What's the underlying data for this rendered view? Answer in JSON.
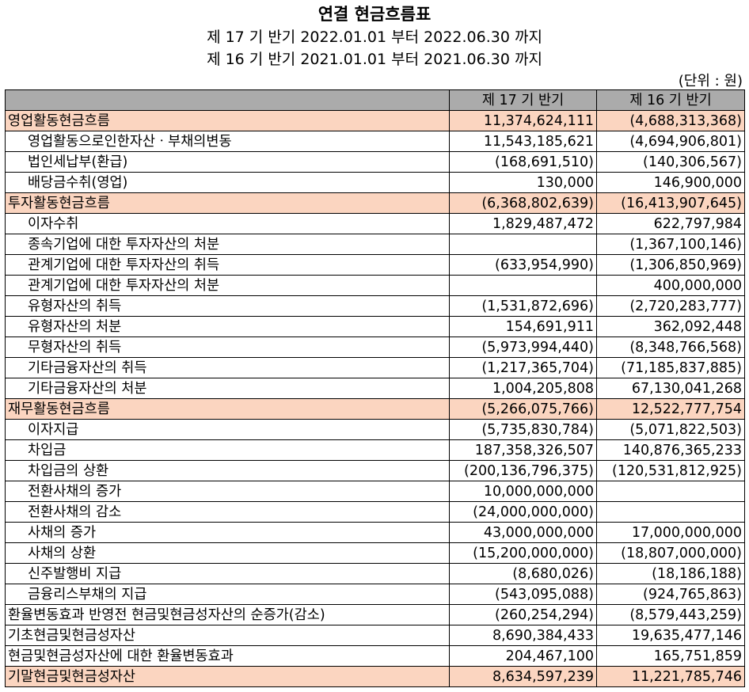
{
  "header": {
    "title": "연결 현금흐름표",
    "period_current": "제 17 기 반기 2022.01.01 부터 2022.06.30 까지",
    "period_prior": "제 16 기 반기 2021.01.01 부터 2021.06.30 까지",
    "unit": "(단위 : 원)"
  },
  "table": {
    "columns": [
      "",
      "제 17 기 반기",
      "제 16 기 반기"
    ],
    "rows": [
      {
        "label": "영업활동현금흐름",
        "cur": "11,374,624,111",
        "prev": "(4,688,313,368)",
        "type": "section"
      },
      {
        "label": "영업활동으로인한자산ㆍ부채의변동",
        "cur": "11,543,185,621",
        "prev": "(4,694,906,801)",
        "type": "sub"
      },
      {
        "label": "법인세납부(환급)",
        "cur": "(168,691,510)",
        "prev": "(140,306,567)",
        "type": "sub"
      },
      {
        "label": "배당금수취(영업)",
        "cur": "130,000",
        "prev": "146,900,000",
        "type": "sub"
      },
      {
        "label": "투자활동현금흐름",
        "cur": "(6,368,802,639)",
        "prev": "(16,413,907,645)",
        "type": "section"
      },
      {
        "label": "이자수취",
        "cur": "1,829,487,472",
        "prev": "622,797,984",
        "type": "sub"
      },
      {
        "label": "종속기업에 대한 투자자산의 처분",
        "cur": "",
        "prev": "(1,367,100,146)",
        "type": "sub"
      },
      {
        "label": "관계기업에 대한 투자자산의 취득",
        "cur": "(633,954,990)",
        "prev": "(1,306,850,969)",
        "type": "sub"
      },
      {
        "label": "관계기업에 대한 투자자산의 처분",
        "cur": "",
        "prev": "400,000,000",
        "type": "sub"
      },
      {
        "label": "유형자산의 취득",
        "cur": "(1,531,872,696)",
        "prev": "(2,720,283,777)",
        "type": "sub"
      },
      {
        "label": "유형자산의 처분",
        "cur": "154,691,911",
        "prev": "362,092,448",
        "type": "sub"
      },
      {
        "label": "무형자산의 취득",
        "cur": "(5,973,994,440)",
        "prev": "(8,348,766,568)",
        "type": "sub"
      },
      {
        "label": "기타금융자산의 취득",
        "cur": "(1,217,365,704)",
        "prev": "(71,185,837,885)",
        "type": "sub"
      },
      {
        "label": "기타금융자산의 처분",
        "cur": "1,004,205,808",
        "prev": "67,130,041,268",
        "type": "sub"
      },
      {
        "label": "재무활동현금흐름",
        "cur": "(5,266,075,766)",
        "prev": "12,522,777,754",
        "type": "section"
      },
      {
        "label": "이자지급",
        "cur": "(5,735,830,784)",
        "prev": "(5,071,822,503)",
        "type": "sub"
      },
      {
        "label": "차입금",
        "cur": "187,358,326,507",
        "prev": "140,876,365,233",
        "type": "sub"
      },
      {
        "label": "차입금의 상환",
        "cur": "(200,136,796,375)",
        "prev": "(120,531,812,925)",
        "type": "sub"
      },
      {
        "label": "전환사채의 증가",
        "cur": "10,000,000,000",
        "prev": "",
        "type": "sub"
      },
      {
        "label": "전환사채의 감소",
        "cur": "(24,000,000,000)",
        "prev": "",
        "type": "sub"
      },
      {
        "label": "사채의 증가",
        "cur": "43,000,000,000",
        "prev": "17,000,000,000",
        "type": "sub"
      },
      {
        "label": "사채의 상환",
        "cur": "(15,200,000,000)",
        "prev": "(18,807,000,000)",
        "type": "sub"
      },
      {
        "label": "신주발행비 지급",
        "cur": "(8,680,026)",
        "prev": "(18,186,188)",
        "type": "sub"
      },
      {
        "label": "금융리스부채의 지급",
        "cur": "(543,095,088)",
        "prev": "(924,765,863)",
        "type": "sub"
      },
      {
        "label": "환율변동효과 반영전 현금및현금성자산의 순증가(감소)",
        "cur": "(260,254,294)",
        "prev": "(8,579,443,259)",
        "type": "plain"
      },
      {
        "label": "기초현금및현금성자산",
        "cur": "8,690,384,433",
        "prev": "19,635,477,146",
        "type": "plain"
      },
      {
        "label": "현금및현금성자산에 대한 환율변동효과",
        "cur": "204,467,100",
        "prev": "165,751,859",
        "type": "plain"
      },
      {
        "label": "기말현금및현금성자산",
        "cur": "8,634,597,239",
        "prev": "11,221,785,746",
        "type": "section"
      }
    ]
  }
}
